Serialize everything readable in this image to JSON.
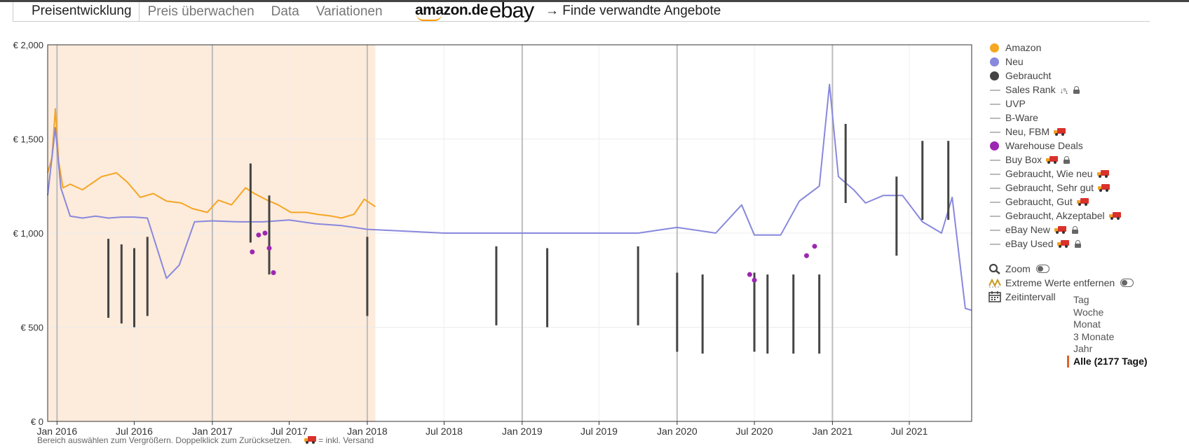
{
  "tabs": [
    {
      "label": "Preisentwicklung",
      "active": true
    },
    {
      "label": "Preis überwachen"
    },
    {
      "label": "Data"
    },
    {
      "label": "Variationen"
    }
  ],
  "marketplaces": {
    "amazon": "amazon.de",
    "ebay": "ebay"
  },
  "related_link": "→  Finde verwandte Angebote",
  "legend": [
    {
      "label": "Amazon",
      "marker": "dot",
      "color": "#f5a623"
    },
    {
      "label": "Neu",
      "marker": "dot",
      "color": "#8888dd"
    },
    {
      "label": "Gebraucht",
      "marker": "dot",
      "color": "#444444"
    },
    {
      "label": "Sales Rank",
      "marker": "line",
      "sort_icon": true,
      "locked": true
    },
    {
      "label": "UVP",
      "marker": "line"
    },
    {
      "label": "B-Ware",
      "marker": "line"
    },
    {
      "label": "Neu, FBM",
      "marker": "line",
      "shipping": true
    },
    {
      "label": "Warehouse Deals",
      "marker": "dot",
      "color": "#9c27b0"
    },
    {
      "label": "Buy Box",
      "marker": "line",
      "shipping": true,
      "locked": true
    },
    {
      "label": "Gebraucht, Wie neu",
      "marker": "line",
      "shipping": true
    },
    {
      "label": "Gebraucht, Sehr gut",
      "marker": "line",
      "shipping": true
    },
    {
      "label": "Gebraucht, Gut",
      "marker": "line",
      "shipping": true
    },
    {
      "label": "Gebraucht, Akzeptabel",
      "marker": "line",
      "shipping": true
    },
    {
      "label": "eBay New",
      "marker": "line",
      "shipping": true,
      "locked": true
    },
    {
      "label": "eBay Used",
      "marker": "line",
      "shipping": true,
      "locked": true
    }
  ],
  "tools": {
    "zoom": "Zoom",
    "extreme": "Extreme Werte entfernen",
    "interval": "Zeitintervall"
  },
  "intervals": [
    "Tag",
    "Woche",
    "Monat",
    "3 Monate",
    "Jahr",
    "Alle (2177 Tage)"
  ],
  "selected_interval": "Alle (2177 Tage)",
  "footnote": {
    "hint": "Bereich auswählen zum Vergrößern. Doppelklick zum Zurücksetzen.",
    "shipping_note": " = inkl. Versand"
  },
  "chart_data": {
    "type": "line",
    "x_range": [
      "2015-12-10",
      "2021-11-25"
    ],
    "ylim": [
      0,
      2000
    ],
    "y_ticks": [
      0,
      500,
      1000,
      1500,
      2000
    ],
    "y_tick_labels": [
      "€ 0",
      "€ 500",
      "€ 1,000",
      "€ 1,500",
      "€ 2,000"
    ],
    "x_ticks": [
      "2016-01-01",
      "2016-07-01",
      "2017-01-01",
      "2017-07-01",
      "2018-01-01",
      "2018-07-01",
      "2019-01-01",
      "2019-07-01",
      "2020-01-01",
      "2020-07-01",
      "2021-01-01",
      "2021-07-01"
    ],
    "x_tick_labels": [
      "Jan 2016",
      "Jul 2016",
      "Jan 2017",
      "Jul 2017",
      "Jan 2018",
      "Jul 2018",
      "Jan 2019",
      "Jul 2019",
      "Jan 2020",
      "Jul 2020",
      "Jan 2021",
      "Jul 2021"
    ],
    "year_gridlines": [
      "2016-01-01",
      "2017-01-01",
      "2018-01-01",
      "2019-01-01",
      "2020-01-01",
      "2021-01-01"
    ],
    "series": [
      {
        "name": "Amazon",
        "color": "#f5a623",
        "points": [
          [
            "2015-12-10",
            1320
          ],
          [
            "2015-12-20",
            1400
          ],
          [
            "2015-12-28",
            1660
          ],
          [
            "2016-01-05",
            1380
          ],
          [
            "2016-01-15",
            1240
          ],
          [
            "2016-02-01",
            1260
          ],
          [
            "2016-03-01",
            1230
          ],
          [
            "2016-04-15",
            1300
          ],
          [
            "2016-05-20",
            1320
          ],
          [
            "2016-06-15",
            1270
          ],
          [
            "2016-07-15",
            1190
          ],
          [
            "2016-08-15",
            1210
          ],
          [
            "2016-09-15",
            1170
          ],
          [
            "2016-10-20",
            1160
          ],
          [
            "2016-11-15",
            1130
          ],
          [
            "2016-12-20",
            1110
          ],
          [
            "2017-01-15",
            1175
          ],
          [
            "2017-02-15",
            1150
          ],
          [
            "2017-03-20",
            1240
          ],
          [
            "2017-04-10",
            1210
          ],
          [
            "2017-05-10",
            1175
          ],
          [
            "2017-06-05",
            1150
          ],
          [
            "2017-07-05",
            1110
          ],
          [
            "2017-08-10",
            1110
          ],
          [
            "2017-09-05",
            1100
          ],
          [
            "2017-10-10",
            1090
          ],
          [
            "2017-11-01",
            1080
          ],
          [
            "2017-12-01",
            1100
          ],
          [
            "2017-12-25",
            1180
          ],
          [
            "2018-01-20",
            1140
          ]
        ]
      },
      {
        "name": "Neu",
        "color": "#8888dd",
        "points": [
          [
            "2015-12-10",
            1200
          ],
          [
            "2015-12-28",
            1560
          ],
          [
            "2016-01-10",
            1240
          ],
          [
            "2016-02-01",
            1090
          ],
          [
            "2016-03-01",
            1080
          ],
          [
            "2016-04-01",
            1090
          ],
          [
            "2016-05-01",
            1080
          ],
          [
            "2016-06-01",
            1085
          ],
          [
            "2016-07-01",
            1085
          ],
          [
            "2016-08-01",
            1080
          ],
          [
            "2016-09-15",
            760
          ],
          [
            "2016-10-15",
            830
          ],
          [
            "2016-11-20",
            1060
          ],
          [
            "2017-01-01",
            1065
          ],
          [
            "2017-03-01",
            1060
          ],
          [
            "2017-05-01",
            1060
          ],
          [
            "2017-07-01",
            1070
          ],
          [
            "2017-09-01",
            1050
          ],
          [
            "2017-11-01",
            1040
          ],
          [
            "2018-01-01",
            1020
          ],
          [
            "2018-04-01",
            1010
          ],
          [
            "2018-07-01",
            1000
          ],
          [
            "2018-10-01",
            1000
          ],
          [
            "2019-01-01",
            1000
          ],
          [
            "2019-04-01",
            1000
          ],
          [
            "2019-07-01",
            1000
          ],
          [
            "2019-10-01",
            1000
          ],
          [
            "2020-01-01",
            1030
          ],
          [
            "2020-04-01",
            1000
          ],
          [
            "2020-06-01",
            1150
          ],
          [
            "2020-07-01",
            990
          ],
          [
            "2020-09-01",
            990
          ],
          [
            "2020-10-15",
            1170
          ],
          [
            "2020-12-01",
            1250
          ],
          [
            "2020-12-25",
            1790
          ],
          [
            "2021-01-15",
            1300
          ],
          [
            "2021-02-20",
            1230
          ],
          [
            "2021-03-20",
            1160
          ],
          [
            "2021-05-01",
            1200
          ],
          [
            "2021-06-15",
            1200
          ],
          [
            "2021-08-01",
            1060
          ],
          [
            "2021-09-15",
            1000
          ],
          [
            "2021-10-10",
            1190
          ],
          [
            "2021-11-10",
            600
          ],
          [
            "2021-11-25",
            590
          ]
        ]
      },
      {
        "name": "Gebraucht",
        "color": "#444444",
        "points": [
          [
            "2016-05-01",
            550
          ],
          [
            "2016-06-01",
            520
          ],
          [
            "2016-07-01",
            500
          ],
          [
            "2016-08-01",
            560
          ],
          [
            "2017-04-01",
            950
          ],
          [
            "2017-05-15",
            780
          ],
          [
            "2018-01-01",
            560
          ],
          [
            "2018-11-01",
            510
          ],
          [
            "2019-03-01",
            500
          ],
          [
            "2019-10-01",
            510
          ],
          [
            "2020-01-01",
            370
          ],
          [
            "2020-03-01",
            360
          ],
          [
            "2020-07-01",
            370
          ],
          [
            "2020-08-01",
            360
          ],
          [
            "2020-10-01",
            360
          ],
          [
            "2020-12-01",
            360
          ],
          [
            "2021-02-01",
            1160
          ],
          [
            "2021-06-01",
            880
          ],
          [
            "2021-08-01",
            1070
          ],
          [
            "2021-10-01",
            1070
          ]
        ]
      },
      {
        "name": "Warehouse Deals",
        "color": "#9c27b0",
        "points": [
          [
            "2017-04-05",
            900
          ],
          [
            "2017-04-20",
            990
          ],
          [
            "2017-05-05",
            1000
          ],
          [
            "2017-05-15",
            920
          ],
          [
            "2017-05-25",
            790
          ],
          [
            "2020-06-20",
            780
          ],
          [
            "2020-07-01",
            750
          ],
          [
            "2020-11-01",
            880
          ],
          [
            "2020-11-20",
            930
          ]
        ]
      }
    ]
  }
}
